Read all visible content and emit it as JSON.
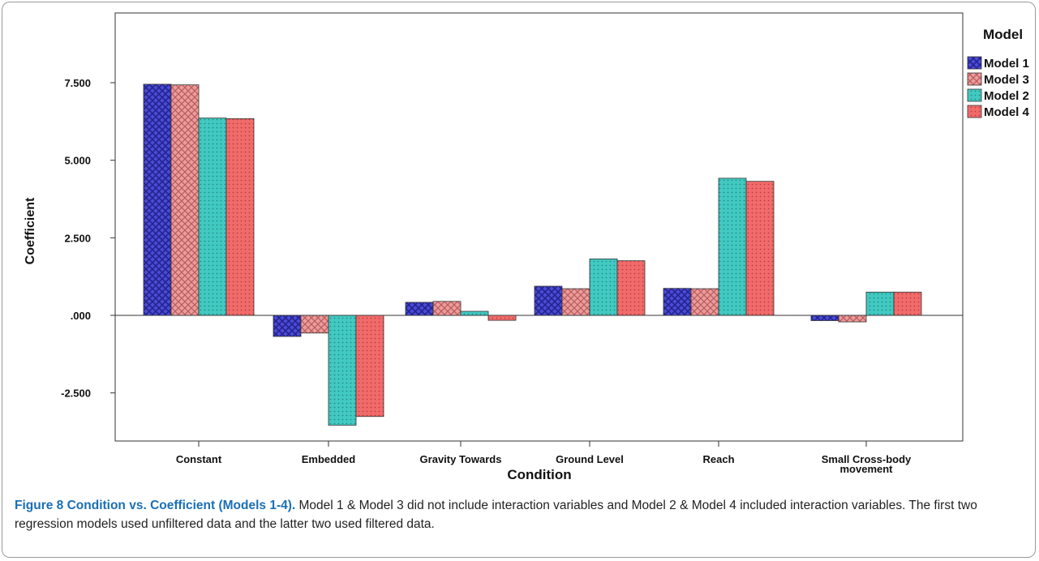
{
  "caption": {
    "figure_title": "Figure 8 Condition vs. Coefficient (Models 1-4).",
    "text": " Model 1 & Model 3 did not include interaction variables and Model 2 & Model 4 included interaction variables. The first two regression models used unfiltered data and the latter two used filtered data."
  },
  "chart_data": {
    "type": "bar",
    "xlabel": "Condition",
    "ylabel": "Coefficient",
    "legend_title": "Model",
    "legend_position": "top-right",
    "ylim": [
      -3.9,
      9.0
    ],
    "yticks": [
      -2.5,
      0,
      2.5,
      5,
      7.5
    ],
    "ytick_labels": [
      "-2.500",
      ".000",
      "2.500",
      "5.000",
      "7.500"
    ],
    "grid": false,
    "categories": [
      "Constant",
      "Embedded",
      "Gravity Towards",
      "Ground Level",
      "Reach",
      "Small Cross-body movement"
    ],
    "series": [
      {
        "name": "Model 1",
        "color": "#4b4bd6",
        "pattern": "crosshatch",
        "values": [
          7.45,
          -0.68,
          0.42,
          0.94,
          0.87,
          -0.17
        ]
      },
      {
        "name": "Model 3",
        "color": "#e89090",
        "pattern": "crosshatch-light",
        "values": [
          7.43,
          -0.57,
          0.45,
          0.86,
          0.86,
          -0.21
        ]
      },
      {
        "name": "Model 2",
        "color": "#3cc3bb",
        "pattern": "dots",
        "values": [
          6.36,
          -3.54,
          0.13,
          1.82,
          4.42,
          0.75
        ]
      },
      {
        "name": "Model 4",
        "color": "#f06565",
        "pattern": "dots",
        "values": [
          6.34,
          -3.26,
          -0.16,
          1.76,
          4.32,
          0.75
        ]
      }
    ]
  }
}
